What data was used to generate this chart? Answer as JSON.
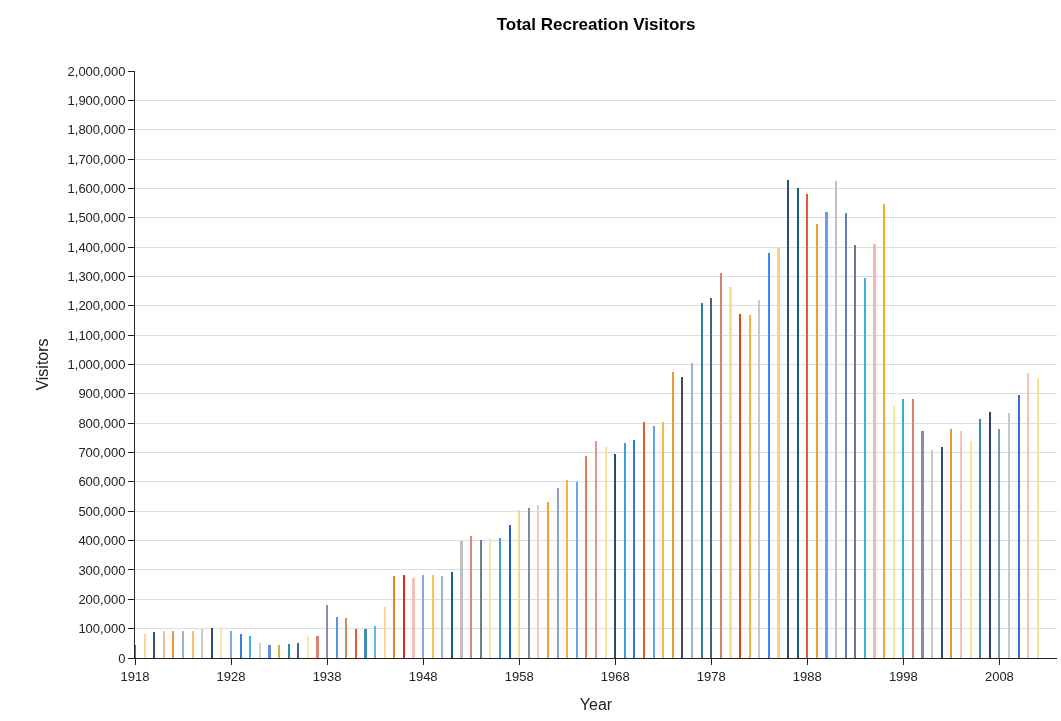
{
  "chart_data": {
    "type": "bar",
    "title": "Total Recreation Visitors",
    "xlabel": "Year",
    "ylabel": "Visitors",
    "x": [
      1918,
      1919,
      1920,
      1921,
      1922,
      1923,
      1924,
      1925,
      1926,
      1927,
      1928,
      1929,
      1930,
      1931,
      1932,
      1933,
      1934,
      1935,
      1936,
      1937,
      1938,
      1939,
      1940,
      1941,
      1942,
      1943,
      1944,
      1945,
      1946,
      1947,
      1948,
      1949,
      1950,
      1951,
      1952,
      1953,
      1954,
      1955,
      1956,
      1957,
      1958,
      1959,
      1960,
      1961,
      1962,
      1963,
      1964,
      1965,
      1966,
      1967,
      1968,
      1969,
      1970,
      1971,
      1972,
      1973,
      1974,
      1975,
      1976,
      1977,
      1978,
      1979,
      1980,
      1981,
      1982,
      1983,
      1984,
      1985,
      1986,
      1987,
      1988,
      1989,
      1990,
      1991,
      1992,
      1993,
      1994,
      1995,
      1996,
      1997,
      1998,
      1999,
      2000,
      2001,
      2002,
      2003,
      2004,
      2005,
      2006,
      2007,
      2008,
      2009,
      2010,
      2011,
      2012
    ],
    "values": [
      43000,
      81000,
      90000,
      93000,
      93000,
      93000,
      93000,
      98000,
      102000,
      106000,
      93000,
      81000,
      76000,
      51000,
      43000,
      43000,
      47000,
      51000,
      76000,
      76000,
      182000,
      140000,
      135000,
      98000,
      98000,
      110000,
      173000,
      278000,
      282000,
      274000,
      282000,
      282000,
      278000,
      294000,
      400000,
      414000,
      402000,
      410000,
      410000,
      452000,
      505000,
      512000,
      523000,
      531000,
      578000,
      607000,
      598000,
      687000,
      738000,
      720000,
      695000,
      733000,
      742000,
      804000,
      792000,
      804000,
      975000,
      959000,
      1005000,
      1210000,
      1228000,
      1312000,
      1265000,
      1172000,
      1169000,
      1220000,
      1379000,
      1397000,
      1630000,
      1600000,
      1580000,
      1479000,
      1520000,
      1625000,
      1517000,
      1407000,
      1295000,
      1412000,
      1547000,
      859000,
      884000,
      884000,
      775000,
      708000,
      720000,
      779000,
      775000,
      741000,
      813000,
      838000,
      779000,
      835000,
      897000,
      972000,
      954000
    ],
    "colors": [
      "#d9452b",
      "#fdd58c",
      "#3b5078",
      "#f4b9b0",
      "#e9963a",
      "#9fb1d4",
      "#fbbf66",
      "#c8c8c8",
      "#2e4a7a",
      "#fde4a4",
      "#7ea7e8",
      "#3a7de0",
      "#45aee0",
      "#d0d0d0",
      "#5b8fe0",
      "#f5a623",
      "#2b8cb0",
      "#4a5f80",
      "#fde7a8",
      "#d9826e",
      "#8390a8",
      "#5b93e8",
      "#d9826e",
      "#e8572a",
      "#3f8fb0",
      "#5cb8e8",
      "#fbd892",
      "#e08428",
      "#e8281e",
      "#f4c0b8",
      "#7ea7f0",
      "#fbc05c",
      "#9fb1d4",
      "#0a6090",
      "#c0c0c0",
      "#d98a7a",
      "#6b7d96",
      "#fde4a4",
      "#3aa0d8",
      "#1f5ecc",
      "#fcd690",
      "#7d8aa0",
      "#f4c8be",
      "#f5a02a",
      "#8ea0c4",
      "#fbb040",
      "#6aa5f0",
      "#e8745a",
      "#e0958a",
      "#fde29a",
      "#1d4f6e",
      "#3aa0d8",
      "#3a78d8",
      "#e8572a",
      "#6c9ee8",
      "#fbb84a",
      "#e99a3a",
      "#3b4a6a",
      "#9fb1d4",
      "#2b7ea0",
      "#4b5f80",
      "#d9826e",
      "#fde08a",
      "#e8401e",
      "#fbb040",
      "#c8c8c8",
      "#3f86f0",
      "#fdd07a",
      "#2e4a7a",
      "#0e6080",
      "#e05a3a",
      "#f0a030",
      "#6a9ef0",
      "#c0c0c0",
      "#5f7fb8",
      "#6a7890",
      "#3ab0e0",
      "#f4b8b0",
      "#f5aa2a",
      "#fde4a4",
      "#3aa8d8",
      "#d9826e",
      "#8090a8",
      "#c8c8c8",
      "#2e4a7a",
      "#e9962a",
      "#f4c0b8",
      "#fde09a",
      "#2b8cb0",
      "#2e3f68",
      "#7d90b8",
      "#c8c8c8",
      "#2f6fd8",
      "#f4c0b8",
      "#fde09a"
    ],
    "xlim": [
      1918,
      2014
    ],
    "xticks": [
      1918,
      1928,
      1938,
      1948,
      1958,
      1968,
      1978,
      1988,
      1998,
      2008
    ],
    "ylim": [
      0,
      2000000
    ],
    "yticks": [
      {
        "value": 0,
        "label": "0"
      },
      {
        "value": 100000,
        "label": "100,000"
      },
      {
        "value": 200000,
        "label": "200,000"
      },
      {
        "value": 300000,
        "label": "300,000"
      },
      {
        "value": 400000,
        "label": "400,000"
      },
      {
        "value": 500000,
        "label": "500,000"
      },
      {
        "value": 600000,
        "label": "600,000"
      },
      {
        "value": 700000,
        "label": "700,000"
      },
      {
        "value": 800000,
        "label": "800,000"
      },
      {
        "value": 900000,
        "label": "900,000"
      },
      {
        "value": 1000000,
        "label": "1,000,000"
      },
      {
        "value": 1100000,
        "label": "1,100,000"
      },
      {
        "value": 1200000,
        "label": "1,200,000"
      },
      {
        "value": 1300000,
        "label": "1,300,000"
      },
      {
        "value": 1400000,
        "label": "1,400,000"
      },
      {
        "value": 1500000,
        "label": "1,500,000"
      },
      {
        "value": 1600000,
        "label": "1,600,000"
      },
      {
        "value": 1700000,
        "label": "1,700,000"
      },
      {
        "value": 1800000,
        "label": "1,800,000"
      },
      {
        "value": 1900000,
        "label": "1,900,000"
      },
      {
        "value": 2000000,
        "label": "2,000,000"
      }
    ],
    "grid": "y"
  }
}
